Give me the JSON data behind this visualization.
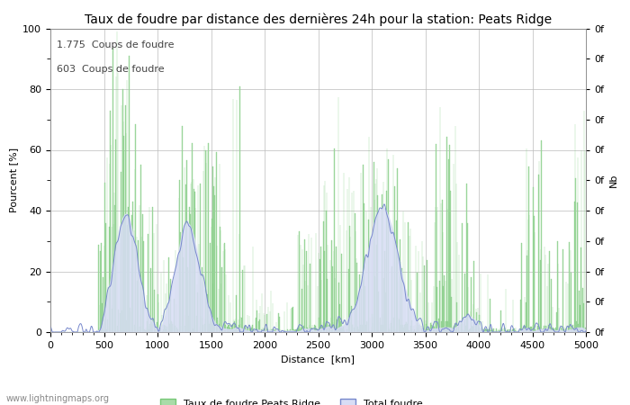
{
  "title": "Taux de foudre par distance des dernières 24h pour la station: Peats Ridge",
  "xlabel": "Distance  [km]",
  "ylabel": "Pourcent [%]",
  "ylabel_right": "Nb",
  "annotation1": "1.775  Coups de foudre",
  "annotation2": "603  Coups de foudre",
  "watermark": "www.lightningmaps.org",
  "legend1": "Taux de foudre Peats Ridge",
  "legend2": "Total foudre",
  "xlim": [
    0,
    5000
  ],
  "ylim": [
    0,
    100
  ],
  "right_ytick_labels": [
    "0f",
    "0f",
    "0f",
    "0f",
    "0f",
    "0f",
    "0f",
    "0f",
    "0f",
    "0f",
    "0f"
  ],
  "bar_color": "#a8dba8",
  "bar_edge_color": "#78c878",
  "area_color": "#d8ddf5",
  "line_color": "#7788cc",
  "background_color": "#ffffff",
  "grid_color": "#bbbbbb",
  "title_fontsize": 10,
  "axis_fontsize": 8,
  "tick_fontsize": 8,
  "annotation_fontsize": 8
}
